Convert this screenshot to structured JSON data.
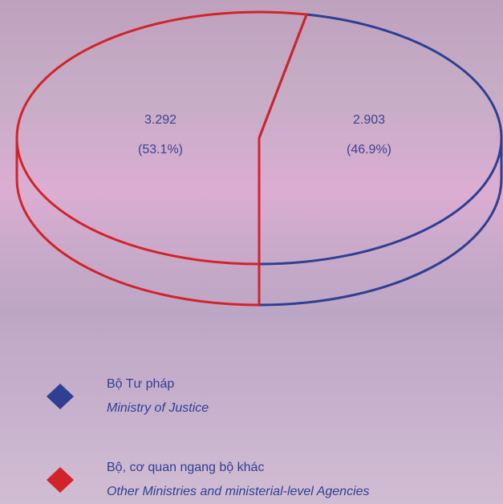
{
  "chart_data": {
    "type": "pie3d",
    "categories": [
      "Bộ Tư pháp",
      "Bộ, cơ quan ngang bộ khác"
    ],
    "categories_en": [
      "Ministry of Justice",
      "Other Ministries and ministerial-level Agencies"
    ],
    "values": [
      2903,
      3292
    ],
    "value_labels": [
      "2.903",
      "3.292"
    ],
    "percents": [
      46.9,
      53.1
    ],
    "percent_labels": [
      "(46.9%)",
      "(53.1%)"
    ],
    "colors": [
      "#2e3f94",
      "#d2232a"
    ]
  }
}
